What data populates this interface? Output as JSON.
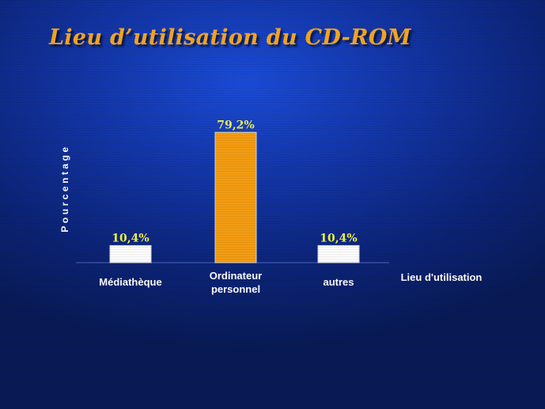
{
  "chart_data": {
    "type": "bar",
    "title": "Lieu d’utilisation du CD-ROM",
    "xlabel": "Lieu d'utilisation",
    "ylabel": "Pourcentage",
    "categories": [
      "Médiathèque",
      "Ordinateur personnel",
      "autres"
    ],
    "category_lines": [
      [
        "Médiathèque"
      ],
      [
        "Ordinateur",
        "personnel"
      ],
      [
        "autres"
      ]
    ],
    "values": [
      10.4,
      79.2,
      10.4
    ],
    "value_labels": [
      "10,4%",
      "79,2%",
      "10,4%"
    ],
    "bar_colors": [
      "#fcfcfc",
      "#f39c12",
      "#fcfcfc"
    ],
    "label_color": "#f2f24a",
    "ylim": [
      0,
      100
    ],
    "grid": false,
    "legend": "none"
  }
}
